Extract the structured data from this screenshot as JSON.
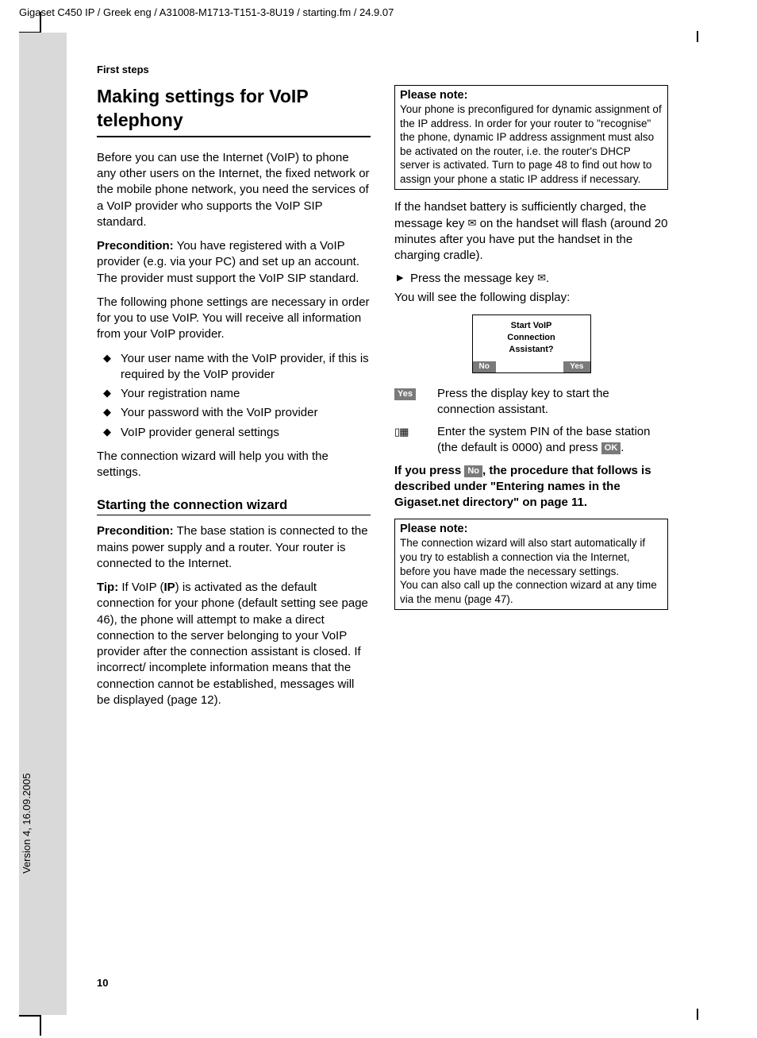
{
  "header": "Gigaset C450 IP / Greek eng / A31008-M1713-T151-3-8U19 / starting.fm / 24.9.07",
  "version": "Version 4, 16.09.2005",
  "section_label": "First steps",
  "page_number": "10",
  "col1": {
    "h1": "Making settings for VoIP telephony",
    "p1": "Before you can use the Internet (VoIP) to phone any other users on the Internet, the fixed network or the mobile phone network, you need the services of a VoIP provider who supports the VoIP SIP standard.",
    "p2_bold": "Precondition:",
    "p2": " You have registered with a VoIP provider (e.g. via your PC) and set up an account. The provider must support the VoIP SIP standard.",
    "p3": "The following phone settings are necessary in order for you to use VoIP. You will receive all information from your VoIP provider.",
    "bullets": [
      "Your user name with the VoIP provider, if this is required by the VoIP provider",
      "Your registration name",
      "Your password with the VoIP provider",
      "VoIP provider general settings"
    ],
    "p4": "The connection wizard will help you with the settings.",
    "h2": "Starting the connection wizard",
    "p5_bold": "Precondition:",
    "p5": " The base station is connected to the mains power supply and a router. Your router is connected to the Internet.",
    "p6_bold": "Tip:",
    "p6a": " If VoIP (",
    "p6b": "IP",
    "p6c": ") is activated as the default connection for your phone (default setting see page 46), the phone will attempt to make a direct connection to the server belonging to your VoIP provider after the connection assistant is closed. If incorrect/ incomplete information means that the connection cannot be established, messages will be displayed (page 12)."
  },
  "col2": {
    "note1_title": "Please note:",
    "note1_body": "Your phone is preconfigured for dynamic assignment of the IP address. In order for your router to \"recognise\" the phone, dynamic IP address assignment must also be activated on the router, i.e. the router's DHCP server is activated. Turn to page 48 to find out how to assign your phone a static IP address if necessary.",
    "p1a": "If the handset battery is sufficiently charged, the message key ",
    "p1b": " on the handset will flash (around 20 minutes after you have put the handset in the charging cradle).",
    "step1a": "Press the message key ",
    "step1b": ".",
    "p2": "You will see the following display:",
    "display_l1": "Start VoIP",
    "display_l2": "Connection",
    "display_l3": "Assistant?",
    "softkey_no": "No",
    "softkey_yes": "Yes",
    "def_yes_key": "Yes",
    "def_yes_text": "Press the display key to start the connection assistant.",
    "def_pin_text_a": "Enter the system PIN of the base station (the default is 0000) and press ",
    "def_pin_ok": "OK",
    "def_pin_text_b": ".",
    "p3a": "If you press ",
    "p3_no": "No",
    "p3b": ", the procedure that follows is described under \"Entering names in the Gigaset.net directory\" on page 11.",
    "note2_title": "Please note:",
    "note2_body1": "The connection wizard will also start automatically if you try to establish a connection via the Internet, before you have made the necessary settings.",
    "note2_body2": "You can also call up the connection wizard at any time via the menu (page 47)."
  }
}
